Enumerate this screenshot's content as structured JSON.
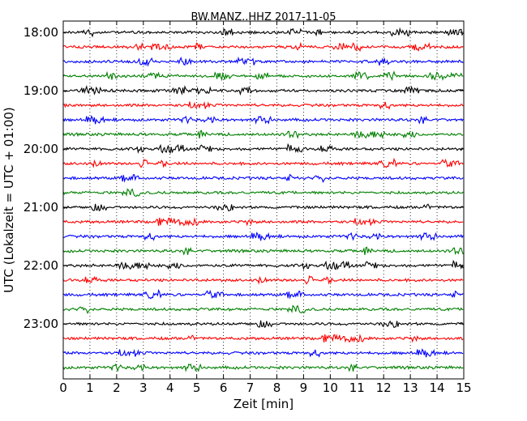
{
  "chart_data": {
    "type": "line",
    "title": "BW.MANZ..HHZ 2017-11-05",
    "xlabel": "Zeit  [min]",
    "ylabel": "UTC (Lokalzeit = UTC + 01:00)",
    "xlim": [
      0,
      15
    ],
    "x_ticks": [
      "0",
      "1",
      "2",
      "3",
      "4",
      "5",
      "6",
      "7",
      "8",
      "9",
      "10",
      "11",
      "12",
      "13",
      "14",
      "15"
    ],
    "y_ticks": [
      "18:00",
      "19:00",
      "20:00",
      "21:00",
      "22:00",
      "23:00"
    ],
    "grid": "vertical dotted",
    "trace_colors": [
      "#000000",
      "#ff0000",
      "#0000ff",
      "#008000"
    ],
    "trace_starts": [
      "18:00",
      "18:15",
      "18:30",
      "18:45",
      "19:00",
      "19:15",
      "19:30",
      "19:45",
      "20:00",
      "20:15",
      "20:30",
      "20:45",
      "21:00",
      "21:15",
      "21:30",
      "21:45",
      "22:00",
      "22:15",
      "22:30",
      "22:45",
      "23:00",
      "23:15",
      "23:30",
      "23:45"
    ]
  }
}
